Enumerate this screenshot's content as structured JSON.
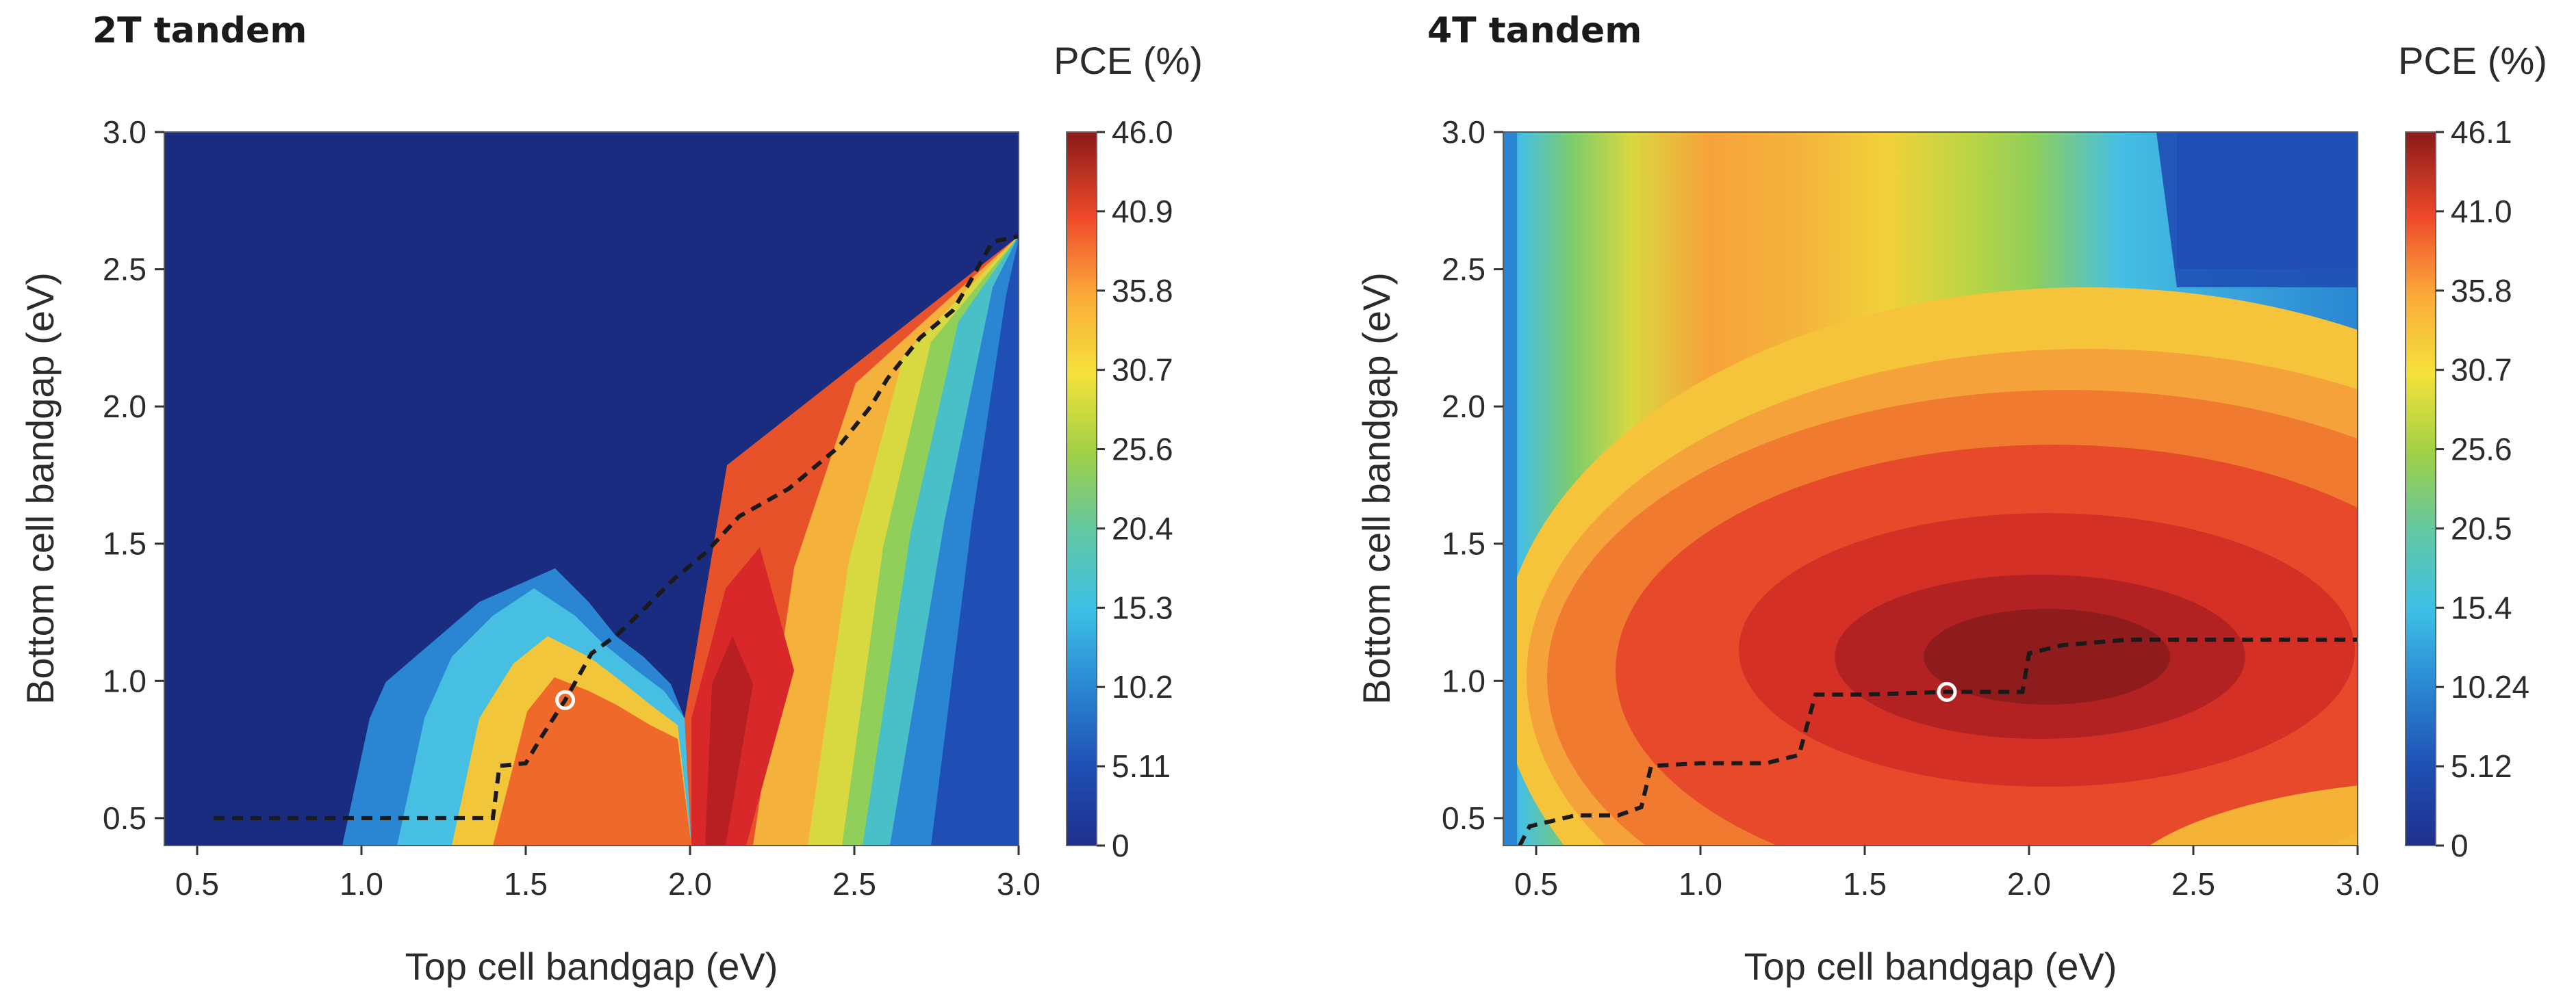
{
  "chart_data": [
    {
      "type": "heatmap",
      "title": "2T tandem",
      "xlabel": "Top cell bandgap (eV)",
      "ylabel": "Bottom cell bandgap (eV)",
      "xlim": [
        0.4,
        3.0
      ],
      "ylim": [
        0.4,
        3.0
      ],
      "x_ticks": [
        "0.5",
        "1.0",
        "1.5",
        "2.0",
        "2.5",
        "3.0"
      ],
      "y_ticks": [
        "0.5",
        "1.0",
        "1.5",
        "2.0",
        "2.5",
        "3.0"
      ],
      "colorbar": {
        "label": "PCE (%)",
        "range": [
          0,
          46.0
        ],
        "ticks": [
          "46.0",
          "40.9",
          "35.8",
          "30.7",
          "25.6",
          "20.4",
          "15.3",
          "10.2",
          "5.11",
          "0"
        ]
      },
      "max_point": {
        "x": 1.62,
        "y": 0.93
      },
      "optimal_path": [
        [
          0.55,
          0.5
        ],
        [
          0.8,
          0.5
        ],
        [
          1.05,
          0.5
        ],
        [
          1.3,
          0.5
        ],
        [
          1.4,
          0.5
        ],
        [
          1.42,
          0.69
        ],
        [
          1.5,
          0.7
        ],
        [
          1.55,
          0.8
        ],
        [
          1.62,
          0.93
        ],
        [
          1.7,
          1.1
        ],
        [
          1.78,
          1.17
        ],
        [
          1.85,
          1.25
        ],
        [
          1.95,
          1.37
        ],
        [
          2.05,
          1.47
        ],
        [
          2.15,
          1.6
        ],
        [
          2.3,
          1.7
        ],
        [
          2.45,
          1.85
        ],
        [
          2.55,
          2.0
        ],
        [
          2.6,
          2.1
        ],
        [
          2.7,
          2.25
        ],
        [
          2.8,
          2.35
        ],
        [
          2.85,
          2.45
        ],
        [
          2.92,
          2.6
        ],
        [
          3.0,
          2.62
        ]
      ]
    },
    {
      "type": "heatmap",
      "title": "4T tandem",
      "xlabel": "Top cell bandgap (eV)",
      "ylabel": "Bottom cell bandgap (eV)",
      "xlim": [
        0.4,
        3.0
      ],
      "ylim": [
        0.4,
        3.0
      ],
      "x_ticks": [
        "0.5",
        "1.0",
        "1.5",
        "2.0",
        "2.5",
        "3.0"
      ],
      "y_ticks": [
        "0.5",
        "1.0",
        "1.5",
        "2.0",
        "2.5",
        "3.0"
      ],
      "colorbar": {
        "label": "PCE (%)",
        "range": [
          0,
          46.1
        ],
        "ticks": [
          "46.1",
          "41.0",
          "35.8",
          "30.7",
          "25.6",
          "20.5",
          "15.4",
          "10.24",
          "5.12",
          "0"
        ]
      },
      "max_point": {
        "x": 1.75,
        "y": 0.96
      },
      "optimal_path": [
        [
          0.45,
          0.4
        ],
        [
          0.48,
          0.47
        ],
        [
          0.55,
          0.49
        ],
        [
          0.62,
          0.51
        ],
        [
          0.75,
          0.51
        ],
        [
          0.82,
          0.54
        ],
        [
          0.85,
          0.69
        ],
        [
          1.0,
          0.7
        ],
        [
          1.2,
          0.7
        ],
        [
          1.3,
          0.73
        ],
        [
          1.35,
          0.95
        ],
        [
          1.5,
          0.95
        ],
        [
          1.75,
          0.96
        ],
        [
          1.98,
          0.96
        ],
        [
          2.0,
          1.1
        ],
        [
          2.1,
          1.13
        ],
        [
          2.3,
          1.15
        ],
        [
          2.5,
          1.15
        ],
        [
          2.8,
          1.15
        ],
        [
          3.0,
          1.15
        ]
      ]
    }
  ]
}
